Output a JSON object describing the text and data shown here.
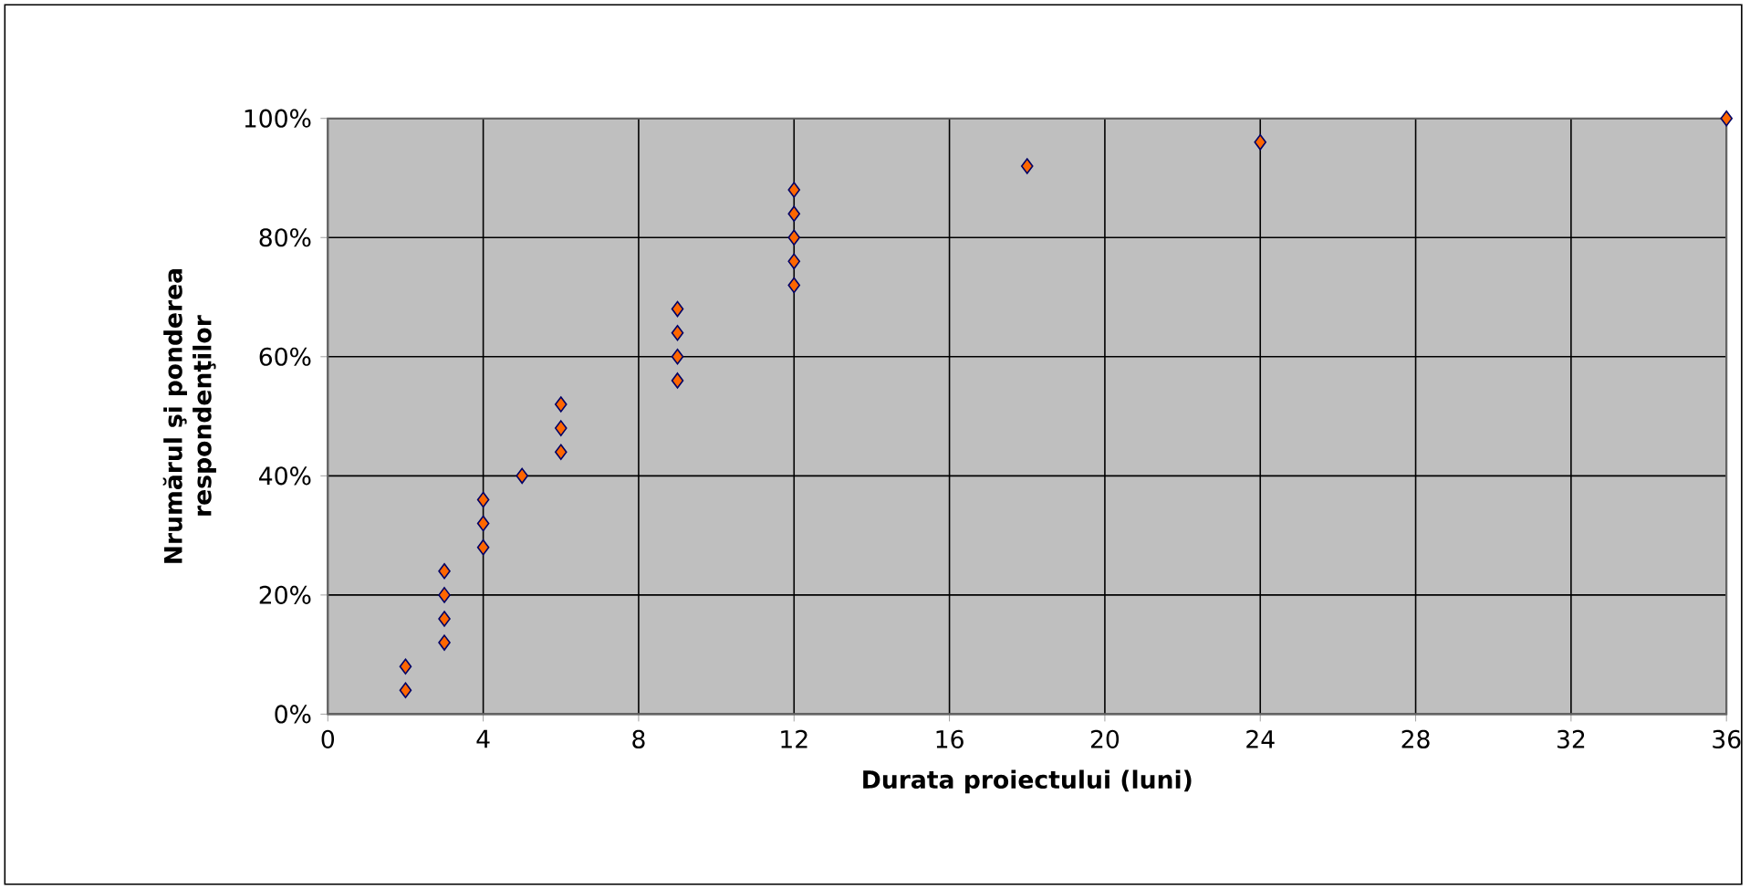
{
  "chart_data": {
    "type": "scatter",
    "xlabel": "Durata proiectului (luni)",
    "ylabel": "Nrumărul  şi ponderea respondenţilor",
    "x": [
      2,
      2,
      3,
      3,
      3,
      3,
      4,
      4,
      4,
      5,
      6,
      6,
      6,
      9,
      9,
      9,
      9,
      12,
      12,
      12,
      12,
      12,
      18,
      24,
      36
    ],
    "values": [
      4,
      8,
      12,
      16,
      20,
      24,
      28,
      32,
      36,
      40,
      44,
      48,
      52,
      56,
      60,
      64,
      68,
      72,
      76,
      80,
      84,
      88,
      92,
      96,
      100
    ],
    "color": "#ff6600",
    "marker": "diamond",
    "xlim": [
      0,
      36
    ],
    "xticks": [
      0,
      4,
      8,
      12,
      16,
      20,
      24,
      28,
      32,
      36
    ],
    "ylim": [
      0,
      100
    ],
    "yticks": [
      {
        "value": 0,
        "label": "0%"
      },
      {
        "value": 20,
        "label": "20%"
      },
      {
        "value": 40,
        "label": "40%"
      },
      {
        "value": 60,
        "label": "60%"
      },
      {
        "value": 80,
        "label": "80%"
      },
      {
        "value": 100,
        "label": "100%"
      }
    ],
    "grid": true
  }
}
